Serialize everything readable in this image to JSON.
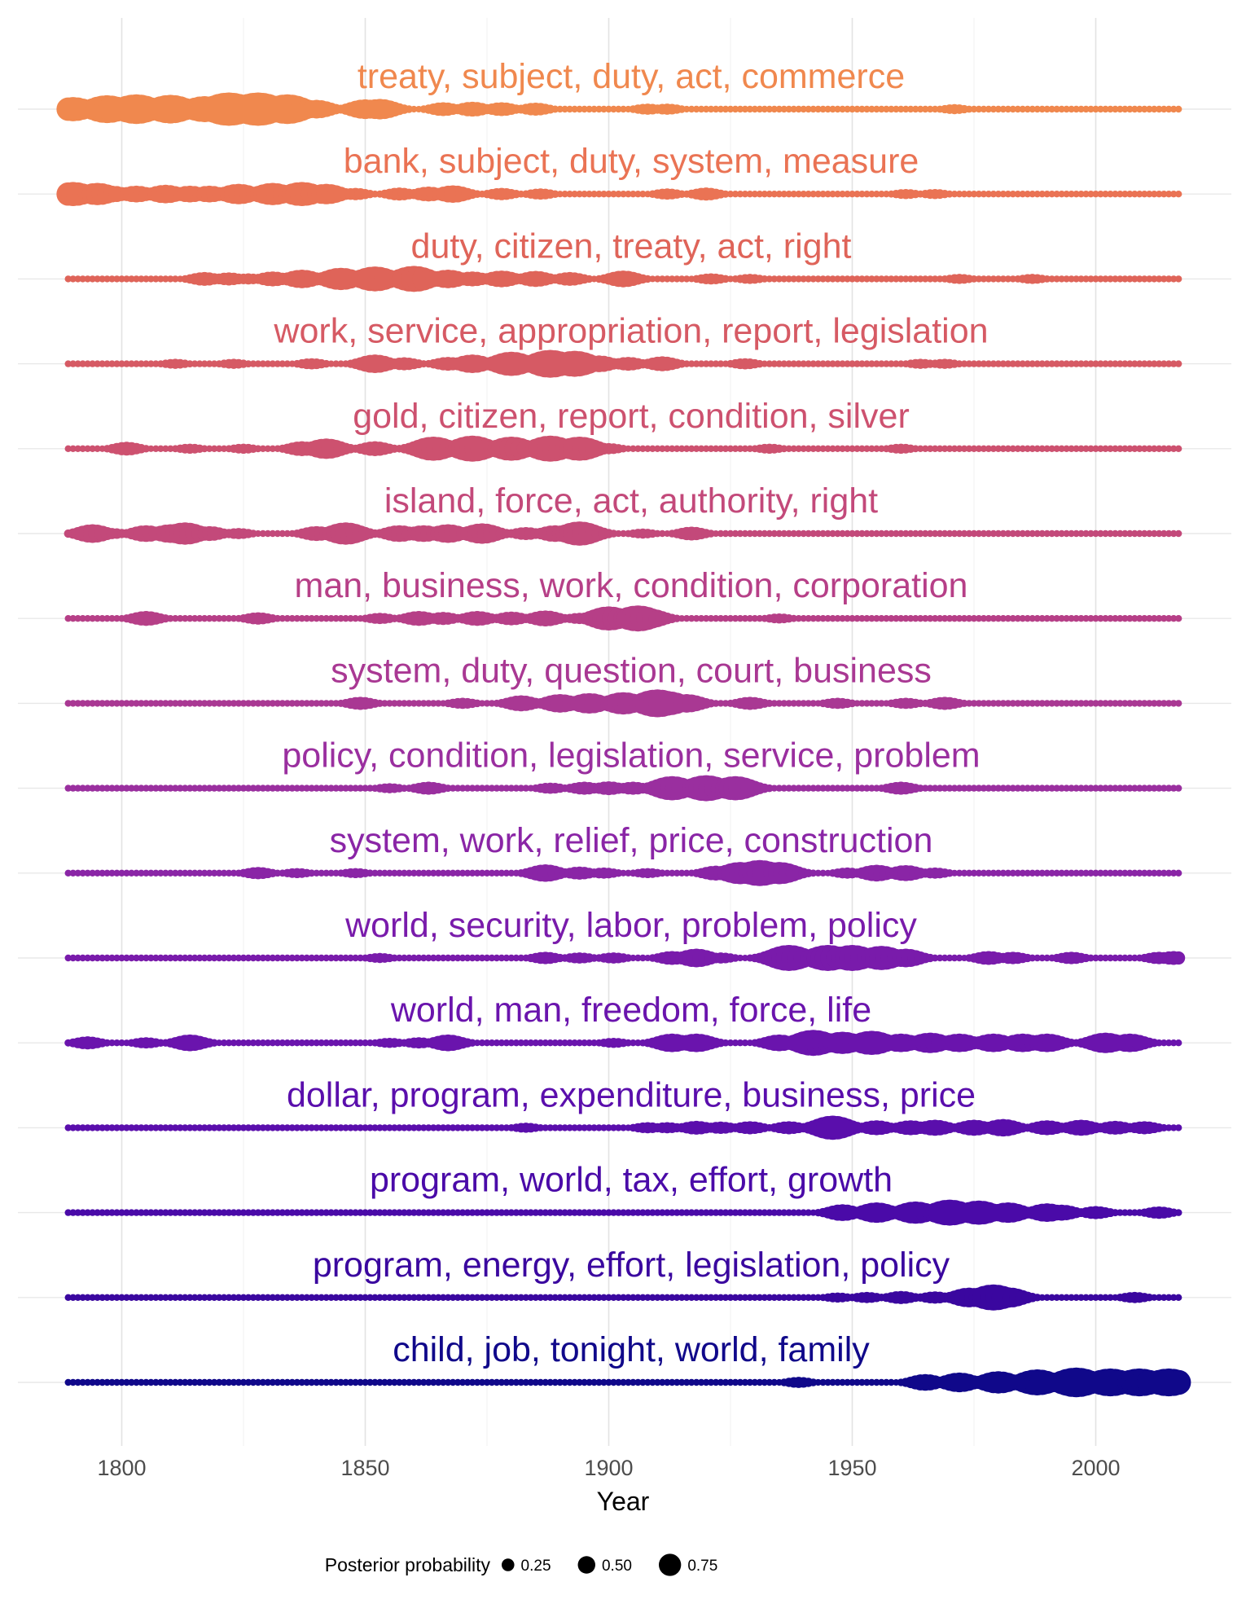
{
  "chart_data": {
    "type": "scatter",
    "title": "",
    "xlabel": "Year",
    "ylabel": "",
    "xlim": [
      1789,
      2017
    ],
    "x_ticks": [
      "1800",
      "1850",
      "1900",
      "1950",
      "2000"
    ],
    "grid": "on",
    "legend": {
      "title": "Posterior probability",
      "placement": "bottom",
      "entries": [
        {
          "label": "0.25",
          "value": 0.25
        },
        {
          "label": "0.50",
          "value": 0.5
        },
        {
          "label": "0.75",
          "value": 0.75
        }
      ]
    },
    "series": [
      {
        "name": "treaty, subject, duty, act, commerce",
        "color": "#f0884e",
        "peaks": [
          [
            1790,
            0.5
          ],
          [
            1797,
            0.6
          ],
          [
            1803,
            0.65
          ],
          [
            1810,
            0.62
          ],
          [
            1817,
            0.55
          ],
          [
            1822,
            0.75
          ],
          [
            1828,
            0.75
          ],
          [
            1834,
            0.65
          ],
          [
            1840,
            0.35
          ],
          [
            1850,
            0.38
          ],
          [
            1853,
            0.4
          ],
          [
            1866,
            0.22
          ],
          [
            1872,
            0.25
          ],
          [
            1878,
            0.22
          ],
          [
            1885,
            0.2
          ],
          [
            1908,
            0.15
          ],
          [
            1912,
            0.15
          ],
          [
            1971,
            0.12
          ]
        ]
      },
      {
        "name": "bank, subject, duty, system, measure",
        "color": "#ea7354",
        "peaks": [
          [
            1790,
            0.5
          ],
          [
            1795,
            0.45
          ],
          [
            1798,
            0.3
          ],
          [
            1803,
            0.3
          ],
          [
            1809,
            0.35
          ],
          [
            1814,
            0.3
          ],
          [
            1818,
            0.3
          ],
          [
            1824,
            0.4
          ],
          [
            1831,
            0.45
          ],
          [
            1837,
            0.5
          ],
          [
            1842,
            0.4
          ],
          [
            1848,
            0.18
          ],
          [
            1857,
            0.2
          ],
          [
            1863,
            0.25
          ],
          [
            1868,
            0.32
          ],
          [
            1878,
            0.18
          ],
          [
            1886,
            0.15
          ],
          [
            1912,
            0.15
          ],
          [
            1920,
            0.2
          ],
          [
            1961,
            0.12
          ],
          [
            1967,
            0.12
          ]
        ]
      },
      {
        "name": "duty, citizen, treaty, act, right",
        "color": "#df6459",
        "peaks": [
          [
            1817,
            0.22
          ],
          [
            1822,
            0.2
          ],
          [
            1826,
            0.15
          ],
          [
            1831,
            0.25
          ],
          [
            1837,
            0.35
          ],
          [
            1845,
            0.45
          ],
          [
            1852,
            0.52
          ],
          [
            1860,
            0.55
          ],
          [
            1867,
            0.35
          ],
          [
            1872,
            0.25
          ],
          [
            1878,
            0.3
          ],
          [
            1885,
            0.28
          ],
          [
            1892,
            0.22
          ],
          [
            1903,
            0.3
          ],
          [
            1921,
            0.15
          ],
          [
            1929,
            0.12
          ],
          [
            1972,
            0.12
          ],
          [
            1987,
            0.12
          ]
        ]
      },
      {
        "name": "work, service, appropriation, report, legislation",
        "color": "#d65a64",
        "peaks": [
          [
            1811,
            0.12
          ],
          [
            1823,
            0.12
          ],
          [
            1839,
            0.15
          ],
          [
            1852,
            0.35
          ],
          [
            1858,
            0.2
          ],
          [
            1867,
            0.22
          ],
          [
            1872,
            0.35
          ],
          [
            1880,
            0.5
          ],
          [
            1888,
            0.6
          ],
          [
            1893,
            0.55
          ],
          [
            1898,
            0.3
          ],
          [
            1904,
            0.22
          ],
          [
            1911,
            0.25
          ],
          [
            1928,
            0.15
          ],
          [
            1964,
            0.12
          ],
          [
            1969,
            0.12
          ]
        ]
      },
      {
        "name": "gold, citizen, report, condition, silver",
        "color": "#cd516f",
        "peaks": [
          [
            1801,
            0.22
          ],
          [
            1814,
            0.12
          ],
          [
            1825,
            0.12
          ],
          [
            1837,
            0.25
          ],
          [
            1842,
            0.4
          ],
          [
            1852,
            0.25
          ],
          [
            1864,
            0.5
          ],
          [
            1872,
            0.55
          ],
          [
            1880,
            0.5
          ],
          [
            1888,
            0.55
          ],
          [
            1894,
            0.5
          ],
          [
            1900,
            0.15
          ],
          [
            1933,
            0.12
          ],
          [
            1960,
            0.12
          ]
        ]
      },
      {
        "name": "island, force, act, authority, right",
        "color": "#c3497a",
        "peaks": [
          [
            1794,
            0.35
          ],
          [
            1798,
            0.15
          ],
          [
            1805,
            0.3
          ],
          [
            1810,
            0.35
          ],
          [
            1813,
            0.45
          ],
          [
            1818,
            0.25
          ],
          [
            1824,
            0.15
          ],
          [
            1840,
            0.25
          ],
          [
            1846,
            0.45
          ],
          [
            1857,
            0.3
          ],
          [
            1862,
            0.3
          ],
          [
            1867,
            0.35
          ],
          [
            1874,
            0.4
          ],
          [
            1883,
            0.2
          ],
          [
            1889,
            0.3
          ],
          [
            1894,
            0.5
          ],
          [
            1907,
            0.12
          ],
          [
            1917,
            0.22
          ]
        ]
      },
      {
        "name": "man, business, work, condition, corporation",
        "color": "#b63f87",
        "peaks": [
          [
            1805,
            0.25
          ],
          [
            1828,
            0.18
          ],
          [
            1853,
            0.15
          ],
          [
            1861,
            0.25
          ],
          [
            1866,
            0.2
          ],
          [
            1873,
            0.25
          ],
          [
            1880,
            0.22
          ],
          [
            1887,
            0.28
          ],
          [
            1894,
            0.15
          ],
          [
            1900,
            0.5
          ],
          [
            1906,
            0.55
          ],
          [
            1908,
            0.4
          ],
          [
            1935,
            0.12
          ]
        ]
      },
      {
        "name": "system, duty, question, court, business",
        "color": "#a93893",
        "peaks": [
          [
            1849,
            0.2
          ],
          [
            1870,
            0.15
          ],
          [
            1882,
            0.28
          ],
          [
            1890,
            0.35
          ],
          [
            1896,
            0.4
          ],
          [
            1903,
            0.45
          ],
          [
            1910,
            0.6
          ],
          [
            1912,
            0.5
          ],
          [
            1916,
            0.35
          ],
          [
            1929,
            0.2
          ],
          [
            1947,
            0.15
          ],
          [
            1961,
            0.15
          ],
          [
            1969,
            0.2
          ]
        ]
      },
      {
        "name": "policy, condition, legislation, service, problem",
        "color": "#9a2f9f",
        "peaks": [
          [
            1855,
            0.12
          ],
          [
            1863,
            0.2
          ],
          [
            1888,
            0.15
          ],
          [
            1895,
            0.2
          ],
          [
            1900,
            0.22
          ],
          [
            1905,
            0.2
          ],
          [
            1913,
            0.5
          ],
          [
            1920,
            0.55
          ],
          [
            1926,
            0.5
          ],
          [
            1960,
            0.2
          ]
        ]
      },
      {
        "name": "system, work, relief, price, construction",
        "color": "#8a25a6",
        "peaks": [
          [
            1828,
            0.18
          ],
          [
            1836,
            0.12
          ],
          [
            1848,
            0.12
          ],
          [
            1887,
            0.32
          ],
          [
            1894,
            0.2
          ],
          [
            1899,
            0.15
          ],
          [
            1908,
            0.12
          ],
          [
            1922,
            0.25
          ],
          [
            1927,
            0.45
          ],
          [
            1931,
            0.55
          ],
          [
            1935,
            0.45
          ],
          [
            1949,
            0.15
          ],
          [
            1955,
            0.3
          ],
          [
            1961,
            0.28
          ],
          [
            1967,
            0.15
          ]
        ]
      },
      {
        "name": "world, security, labor, problem, policy",
        "color": "#791bab",
        "peaks": [
          [
            1853,
            0.12
          ],
          [
            1887,
            0.18
          ],
          [
            1894,
            0.15
          ],
          [
            1901,
            0.15
          ],
          [
            1913,
            0.22
          ],
          [
            1918,
            0.35
          ],
          [
            1923,
            0.15
          ],
          [
            1937,
            0.55
          ],
          [
            1945,
            0.55
          ],
          [
            1950,
            0.55
          ],
          [
            1956,
            0.5
          ],
          [
            1961,
            0.35
          ],
          [
            1978,
            0.22
          ],
          [
            1983,
            0.18
          ],
          [
            1995,
            0.18
          ],
          [
            2013,
            0.18
          ],
          [
            2016,
            0.22
          ]
        ]
      },
      {
        "name": "world, man, freedom, force, life",
        "color": "#6a14ad",
        "peaks": [
          [
            1793,
            0.2
          ],
          [
            1805,
            0.15
          ],
          [
            1814,
            0.3
          ],
          [
            1855,
            0.12
          ],
          [
            1861,
            0.15
          ],
          [
            1867,
            0.3
          ],
          [
            1901,
            0.12
          ],
          [
            1913,
            0.35
          ],
          [
            1918,
            0.35
          ],
          [
            1935,
            0.3
          ],
          [
            1942,
            0.55
          ],
          [
            1948,
            0.45
          ],
          [
            1954,
            0.5
          ],
          [
            1960,
            0.35
          ],
          [
            1966,
            0.4
          ],
          [
            1972,
            0.35
          ],
          [
            1979,
            0.35
          ],
          [
            1985,
            0.35
          ],
          [
            1990,
            0.35
          ],
          [
            2002,
            0.4
          ],
          [
            2007,
            0.35
          ]
        ]
      },
      {
        "name": "dollar, program, expenditure, business, price",
        "color": "#5a0eac",
        "peaks": [
          [
            1883,
            0.12
          ],
          [
            1908,
            0.15
          ],
          [
            1912,
            0.15
          ],
          [
            1918,
            0.22
          ],
          [
            1923,
            0.18
          ],
          [
            1929,
            0.2
          ],
          [
            1937,
            0.2
          ],
          [
            1946,
            0.5
          ],
          [
            1955,
            0.25
          ],
          [
            1962,
            0.25
          ],
          [
            1967,
            0.28
          ],
          [
            1975,
            0.28
          ],
          [
            1981,
            0.32
          ],
          [
            1990,
            0.25
          ],
          [
            1997,
            0.28
          ],
          [
            2004,
            0.22
          ],
          [
            2010,
            0.2
          ]
        ]
      },
      {
        "name": "program, world, tax, effort, growth",
        "color": "#4a0aa8",
        "peaks": [
          [
            1948,
            0.3
          ],
          [
            1955,
            0.4
          ],
          [
            1963,
            0.45
          ],
          [
            1970,
            0.55
          ],
          [
            1976,
            0.5
          ],
          [
            1982,
            0.4
          ],
          [
            1990,
            0.35
          ],
          [
            1993,
            0.28
          ],
          [
            2000,
            0.2
          ],
          [
            2013,
            0.18
          ]
        ]
      },
      {
        "name": "program, energy, effort, legislation, policy",
        "color": "#3a079f",
        "peaks": [
          [
            1947,
            0.12
          ],
          [
            1953,
            0.15
          ],
          [
            1960,
            0.2
          ],
          [
            1967,
            0.18
          ],
          [
            1974,
            0.38
          ],
          [
            1979,
            0.55
          ],
          [
            1982,
            0.4
          ],
          [
            2008,
            0.15
          ]
        ]
      },
      {
        "name": "child, job, tonight, world, family",
        "color": "#10088a",
        "peaks": [
          [
            1939,
            0.15
          ],
          [
            1965,
            0.3
          ],
          [
            1972,
            0.38
          ],
          [
            1980,
            0.45
          ],
          [
            1988,
            0.55
          ],
          [
            1996,
            0.65
          ],
          [
            2003,
            0.6
          ],
          [
            2009,
            0.6
          ],
          [
            2015,
            0.6
          ]
        ]
      }
    ]
  }
}
